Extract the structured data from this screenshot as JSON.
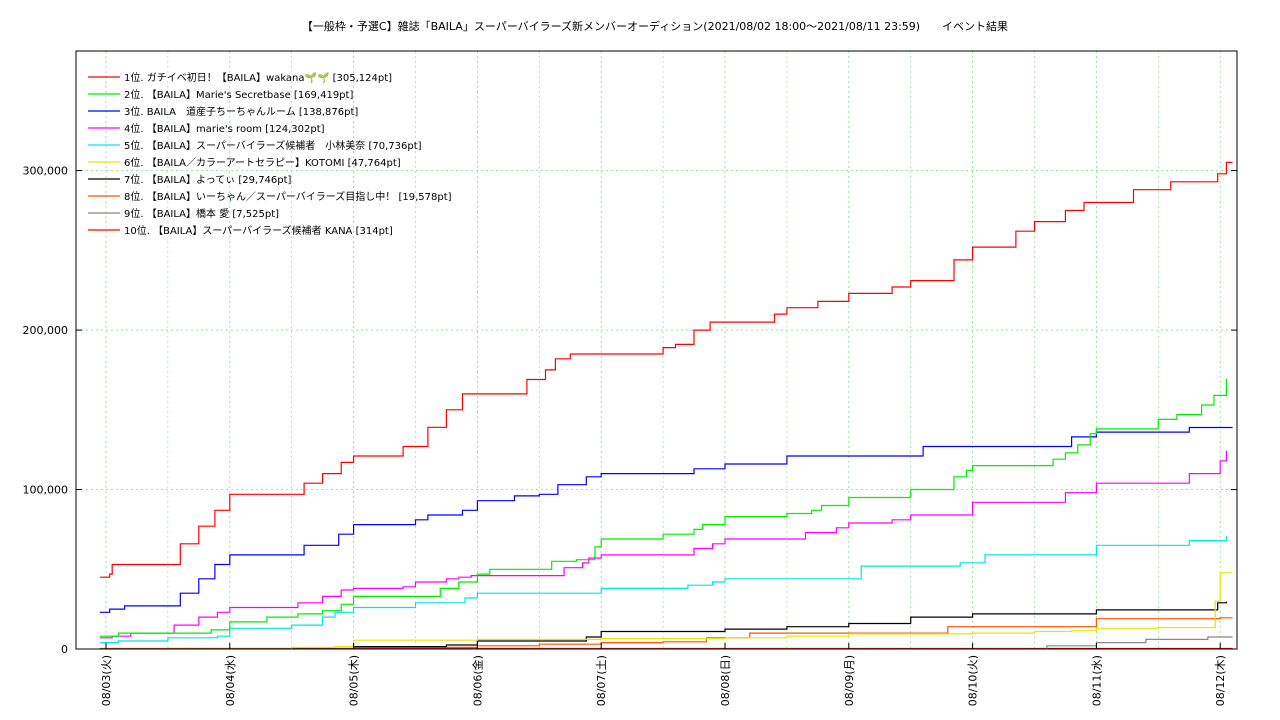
{
  "chart_data": {
    "type": "line",
    "title": "【一般枠・予選C】雑誌「BAILA」スーパーバイラーズ新メンバーオーディション(2021/08/02 18:00〜2021/08/11 23:59)　　イベント結果",
    "xlabel": "",
    "ylabel": "",
    "x_ticks": [
      "08/03(火)",
      "08/04(水)",
      "08/05(木)",
      "08/06(金)",
      "08/07(土)",
      "08/08(日)",
      "08/09(月)",
      "08/10(火)",
      "08/11(水)",
      "08/12(木)"
    ],
    "y_ticks": [
      "0",
      "100,000",
      "200,000",
      "300,000"
    ],
    "y_tick_values": [
      0,
      100000,
      200000,
      300000
    ],
    "ylim": [
      0,
      375000
    ],
    "xlim": [
      0,
      9.1
    ],
    "grid": true,
    "legend_position": "top-left",
    "series": [
      {
        "name": "1位. ガチイベ初日！【BAILA】wakana🌱🌱 [305,124pt]",
        "color": "#ff0000",
        "x": [
          -0.05,
          0.03,
          0.05,
          0.4,
          0.6,
          0.75,
          0.88,
          1.0,
          1.03,
          1.6,
          1.75,
          1.9,
          2.0,
          2.15,
          2.4,
          2.6,
          2.75,
          2.88,
          3.0,
          3.03,
          3.4,
          3.55,
          3.63,
          3.68,
          3.75,
          4.0,
          4.5,
          4.6,
          4.75,
          4.88,
          4.98,
          5.4,
          5.5,
          5.6,
          5.75,
          6.0,
          6.1,
          6.35,
          6.5,
          6.6,
          6.85,
          7.0,
          7.35,
          7.5,
          7.75,
          7.9,
          8.0,
          8.05,
          8.3,
          8.6,
          8.75,
          8.98,
          9.05,
          9.1
        ],
        "y": [
          45000,
          47000,
          53000,
          53000,
          66000,
          77000,
          87000,
          97000,
          97000,
          104000,
          110000,
          117000,
          121000,
          121000,
          127000,
          139000,
          150000,
          160000,
          160000,
          160000,
          169000,
          175000,
          182000,
          182000,
          185000,
          185000,
          189000,
          191000,
          200000,
          205000,
          205000,
          210000,
          214000,
          214000,
          218000,
          223000,
          223000,
          227000,
          231000,
          231000,
          244000,
          252000,
          262000,
          268000,
          275000,
          280000,
          280000,
          280000,
          288000,
          293000,
          293000,
          298000,
          305124,
          305124
        ]
      },
      {
        "name": "2位. 【BAILA】Marie's Secretbase [169,419pt]",
        "color": "#00ee00",
        "x": [
          -0.05,
          0.1,
          0.5,
          0.85,
          1.0,
          1.3,
          1.55,
          1.75,
          1.9,
          2.0,
          2.5,
          2.7,
          2.85,
          3.0,
          3.1,
          3.4,
          3.6,
          3.8,
          3.95,
          4.0,
          4.5,
          4.75,
          4.82,
          5.0,
          5.5,
          5.7,
          5.78,
          6.0,
          6.5,
          6.7,
          6.85,
          6.95,
          7.0,
          7.5,
          7.65,
          7.75,
          7.85,
          7.95,
          8.0,
          8.25,
          8.5,
          8.65,
          8.85,
          8.95,
          9.05
        ],
        "y": [
          8000,
          10000,
          10000,
          12000,
          17000,
          20000,
          22000,
          24000,
          28000,
          33000,
          33000,
          38000,
          42000,
          47000,
          50000,
          50000,
          55000,
          56000,
          64000,
          69000,
          72000,
          75000,
          78000,
          83000,
          85000,
          87000,
          90000,
          95000,
          100000,
          100000,
          108000,
          112000,
          115000,
          115000,
          119000,
          123000,
          128000,
          135000,
          138000,
          138000,
          144000,
          147000,
          153000,
          159000,
          169419
        ]
      },
      {
        "name": "3位. BAILA　道産子ちーちゃんルーム [138,876pt]",
        "color": "#0000ff",
        "x": [
          -0.05,
          0.03,
          0.15,
          0.5,
          0.6,
          0.75,
          0.88,
          1.0,
          1.5,
          1.6,
          1.75,
          1.88,
          2.0,
          2.3,
          2.5,
          2.6,
          2.75,
          2.88,
          3.0,
          3.3,
          3.5,
          3.65,
          3.75,
          3.88,
          4.0,
          4.5,
          4.75,
          5.0,
          5.4,
          5.5,
          6.0,
          6.5,
          6.6,
          6.75,
          7.5,
          7.75,
          7.8,
          8.0,
          8.5,
          8.75,
          9.1
        ],
        "y": [
          23000,
          25000,
          27000,
          27000,
          35000,
          44000,
          53000,
          59000,
          59000,
          65000,
          65000,
          72000,
          78000,
          78000,
          81000,
          84000,
          84000,
          87000,
          93000,
          96000,
          97000,
          103000,
          103000,
          108000,
          110000,
          110000,
          113000,
          116000,
          116000,
          121000,
          121000,
          121000,
          127000,
          127000,
          127000,
          127000,
          133000,
          136000,
          136000,
          138876,
          138876
        ]
      },
      {
        "name": "4位. 【BAILA】marie's room [124,302pt]",
        "color": "#ff00ff",
        "x": [
          -0.05,
          0.05,
          0.2,
          0.4,
          0.55,
          0.75,
          0.9,
          1.0,
          1.45,
          1.55,
          1.75,
          1.9,
          2.0,
          2.4,
          2.5,
          2.75,
          2.85,
          2.95,
          3.0,
          3.5,
          3.7,
          3.85,
          3.9,
          4.0,
          4.5,
          4.75,
          4.9,
          5.0,
          5.5,
          5.65,
          5.75,
          5.9,
          6.0,
          6.35,
          6.5,
          6.85,
          7.0,
          7.5,
          7.75,
          7.95,
          8.0,
          8.5,
          8.75,
          8.95,
          9.0,
          9.05
        ],
        "y": [
          7000,
          8000,
          10000,
          10000,
          15000,
          20000,
          23000,
          26000,
          26000,
          29000,
          33000,
          37000,
          38000,
          39000,
          42000,
          44000,
          45000,
          46000,
          46000,
          46000,
          51000,
          54000,
          57000,
          59000,
          59000,
          63000,
          66000,
          69000,
          69000,
          73000,
          73000,
          76000,
          79000,
          81000,
          84000,
          84000,
          92000,
          92000,
          98000,
          98000,
          104000,
          104000,
          110000,
          110000,
          118000,
          124302
        ]
      },
      {
        "name": "5位. 【BAILA】スーパーバイラーズ候補者　小林美奈 [70,736pt]",
        "color": "#00e5e5",
        "x": [
          -0.05,
          0.1,
          0.5,
          0.9,
          1.0,
          1.5,
          1.75,
          1.85,
          2.0,
          2.5,
          2.75,
          2.9,
          3.0,
          3.2,
          3.5,
          3.8,
          4.0,
          4.5,
          4.7,
          4.9,
          5.0,
          5.5,
          6.0,
          6.1,
          6.5,
          6.9,
          7.1,
          7.5,
          7.75,
          8.0,
          8.5,
          8.75,
          9.0,
          9.05
        ],
        "y": [
          4000,
          5000,
          7000,
          8000,
          13000,
          15000,
          20000,
          23000,
          26000,
          29000,
          29000,
          32000,
          35000,
          35000,
          35000,
          35000,
          38000,
          38000,
          40000,
          42000,
          44000,
          44000,
          44000,
          52000,
          52000,
          54000,
          59000,
          59000,
          59000,
          65000,
          65000,
          68000,
          68000,
          70736
        ]
      },
      {
        "name": "6位. 【BAILA／カラーアートセラピー】KOTOMI [47,764pt]",
        "color": "#e5e500",
        "x": [
          -0.05,
          1.0,
          1.5,
          1.85,
          2.0,
          2.5,
          3.0,
          4.0,
          5.0,
          5.5,
          6.0,
          6.5,
          7.0,
          7.5,
          7.8,
          8.0,
          8.5,
          8.9,
          8.96,
          9.0,
          9.1
        ],
        "y": [
          0,
          0,
          1000,
          1500,
          5500,
          5500,
          6000,
          6500,
          7000,
          8000,
          9500,
          9500,
          10000,
          11000,
          11500,
          13000,
          13500,
          13500,
          30000,
          47764,
          47764
        ]
      },
      {
        "name": "7位. 【BAILA】よってぃ [29,746pt]",
        "color": "#000000",
        "x": [
          -0.05,
          1.0,
          2.0,
          2.75,
          3.0,
          3.5,
          3.88,
          4.0,
          4.5,
          5.0,
          5.5,
          6.0,
          6.5,
          7.0,
          7.5,
          8.0,
          8.5,
          8.75,
          8.98,
          9.05
        ],
        "y": [
          0,
          0,
          1500,
          2500,
          5000,
          5000,
          7500,
          11000,
          11000,
          12500,
          14000,
          16000,
          20000,
          22000,
          22000,
          24500,
          24500,
          24500,
          29000,
          29746
        ]
      },
      {
        "name": "8位. 【BAILA】いーちゃん／スーパーバイラーズ目指し中！ [19,578pt]",
        "color": "#ff5500",
        "x": [
          -0.05,
          1.0,
          2.0,
          3.0,
          3.5,
          4.0,
          4.5,
          4.85,
          5.0,
          5.2,
          6.0,
          6.5,
          6.8,
          7.5,
          8.0,
          8.5,
          9.0,
          9.1
        ],
        "y": [
          0,
          0,
          1000,
          2000,
          3000,
          4000,
          4500,
          7000,
          7000,
          10000,
          10000,
          10000,
          14000,
          14000,
          19000,
          19000,
          19578,
          19578
        ]
      },
      {
        "name": "9位. 【BAILA】橋本 愛 [7,525pt]",
        "color": "#888888",
        "x": [
          -0.05,
          7.5,
          7.6,
          8.0,
          8.4,
          8.9,
          9.1
        ],
        "y": [
          0,
          0,
          2000,
          4000,
          6000,
          7525,
          7525
        ]
      },
      {
        "name": "10位. 【BAILA】スーパーバイラーズ候補者 KANA [314pt]",
        "color": "#ff0000",
        "x": [
          -0.05,
          9.1
        ],
        "y": [
          314,
          314
        ]
      }
    ]
  }
}
